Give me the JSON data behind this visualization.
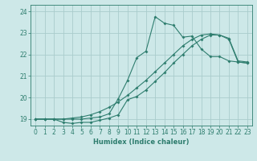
{
  "xlabel": "Humidex (Indice chaleur)",
  "xlim": [
    -0.5,
    23.5
  ],
  "ylim": [
    18.7,
    24.3
  ],
  "xticks": [
    0,
    1,
    2,
    3,
    4,
    5,
    6,
    7,
    8,
    9,
    10,
    11,
    12,
    13,
    14,
    15,
    16,
    17,
    18,
    19,
    20,
    21,
    22,
    23
  ],
  "yticks": [
    19,
    20,
    21,
    22,
    23,
    24
  ],
  "bg_color": "#cde8e8",
  "line_color": "#2e7d6e",
  "grid_color": "#aacccc",
  "line1_x": [
    0,
    1,
    2,
    3,
    4,
    5,
    6,
    7,
    8,
    9,
    10,
    11,
    12,
    13,
    14,
    15,
    16,
    17,
    18,
    19,
    20,
    21,
    22,
    23
  ],
  "line1_y": [
    19.0,
    19.0,
    19.0,
    19.0,
    19.05,
    19.1,
    19.2,
    19.35,
    19.55,
    19.8,
    20.1,
    20.45,
    20.8,
    21.2,
    21.6,
    22.0,
    22.4,
    22.7,
    22.9,
    22.95,
    22.9,
    22.75,
    21.7,
    21.65
  ],
  "line2_x": [
    0,
    1,
    2,
    3,
    4,
    5,
    6,
    7,
    8,
    9,
    10,
    11,
    12,
    13,
    14,
    15,
    16,
    17,
    18,
    19,
    20,
    21,
    22,
    23
  ],
  "line2_y": [
    19.0,
    19.0,
    19.0,
    18.85,
    18.8,
    18.85,
    18.85,
    18.95,
    19.05,
    19.2,
    19.9,
    20.05,
    20.35,
    20.75,
    21.15,
    21.6,
    22.0,
    22.4,
    22.7,
    22.9,
    22.9,
    22.7,
    21.65,
    21.6
  ],
  "line3_x": [
    0,
    1,
    2,
    3,
    4,
    5,
    6,
    7,
    8,
    9,
    10,
    11,
    12,
    13,
    14,
    15,
    16,
    17,
    18,
    19,
    20,
    21,
    22,
    23
  ],
  "line3_y": [
    19.0,
    19.0,
    19.0,
    19.0,
    19.0,
    19.0,
    19.05,
    19.1,
    19.25,
    19.95,
    20.8,
    21.85,
    22.15,
    23.75,
    23.45,
    23.35,
    22.8,
    22.85,
    22.25,
    21.9,
    21.9,
    21.7,
    21.65,
    21.6
  ],
  "tick_fontsize": 5.5,
  "xlabel_fontsize": 6.0,
  "marker_size": 2.0
}
